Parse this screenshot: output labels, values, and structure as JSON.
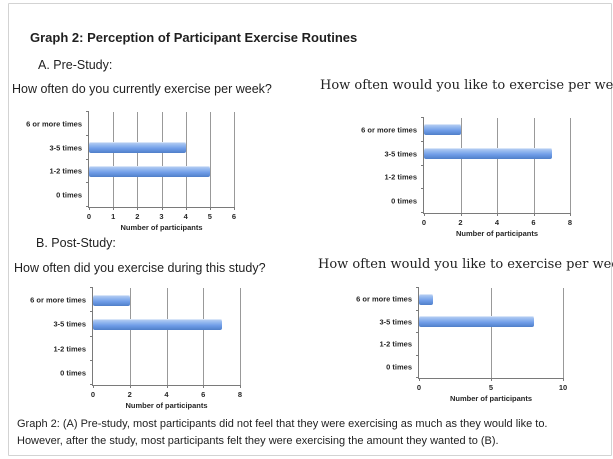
{
  "page": {
    "title": "Graph 2: Perception of Participant Exercise Routines",
    "section_a_label": "A. Pre-Study:",
    "section_b_label": "B. Post-Study:",
    "caption": "Graph 2: (A) Pre-study, most participants did not feel that they were exercising as much as they would like to. However, after the study, most participants felt they were exercising the amount they wanted to (B)."
  },
  "colors": {
    "bar_blue": "#6f9ce7",
    "bar_gradient_top": "#bcd2f3",
    "bar_gradient_bottom": "#4f7fc8",
    "gridline": "#999999",
    "axis": "#7a7a7a",
    "page_border": "#d3d3d3",
    "text": "#1f1f1f"
  },
  "chart_data": [
    {
      "type": "bar",
      "orientation": "horizontal",
      "title": "How often do you currently exercise per week?",
      "title_style": "sans",
      "categories": [
        "6 or more times",
        "3-5 times",
        "1-2 times",
        "0 times"
      ],
      "values": [
        0,
        4,
        5,
        0
      ],
      "xlabel": "Number of participants",
      "xlim": [
        0,
        6
      ],
      "xticks": [
        0,
        1,
        2,
        3,
        4,
        5,
        6
      ],
      "grid": true,
      "legend": false
    },
    {
      "type": "bar",
      "orientation": "horizontal",
      "title": "How often would you like to exercise per week?",
      "title_style": "serif",
      "categories": [
        "6 or more times",
        "3-5 times",
        "1-2 times",
        "0 times"
      ],
      "values": [
        2,
        7,
        0,
        0
      ],
      "xlabel": "Number of participants",
      "xlim": [
        0,
        8
      ],
      "xticks": [
        0,
        2,
        4,
        6,
        8
      ],
      "grid": true,
      "legend": false
    },
    {
      "type": "bar",
      "orientation": "horizontal",
      "title": "How often did you exercise during this study?",
      "title_style": "sans",
      "categories": [
        "6 or more times",
        "3-5 times",
        "1-2 times",
        "0 times"
      ],
      "values": [
        2,
        7,
        0,
        0
      ],
      "xlabel": "Number of participants",
      "xlim": [
        0,
        8
      ],
      "xticks": [
        0,
        2,
        4,
        6,
        8
      ],
      "grid": true,
      "legend": false
    },
    {
      "type": "bar",
      "orientation": "horizontal",
      "title": "How often would you like to exercise per week?",
      "title_style": "serif",
      "categories": [
        "6 or more times",
        "3-5 times",
        "1-2 times",
        "0 times"
      ],
      "values": [
        1,
        8,
        0,
        0
      ],
      "xlabel": "Number of participants",
      "xlim": [
        0,
        10
      ],
      "xticks": [
        0,
        5,
        10
      ],
      "grid": true,
      "legend": false
    }
  ]
}
